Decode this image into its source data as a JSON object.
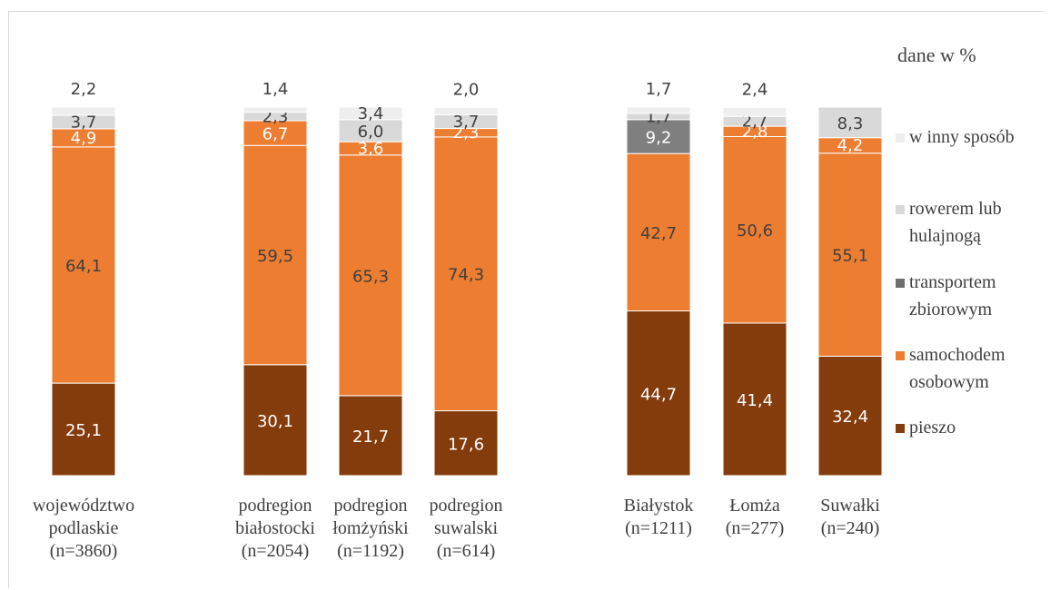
{
  "unit_label": "dane w %",
  "chart_data": {
    "type": "bar",
    "stacked": true,
    "categories": [
      [
        "województwo",
        "podlaskie",
        "(n=3860)"
      ],
      [
        "podregion",
        "białostocki",
        "(n=2054)"
      ],
      [
        "podregion",
        "łomżyński",
        "(n=1192)"
      ],
      [
        "podregion",
        "suwalski",
        "(n=614)"
      ],
      [
        "Białystok",
        "(n=1211)"
      ],
      [
        "Łomża",
        "(n=277)"
      ],
      [
        "Suwałki",
        "(n=240)"
      ]
    ],
    "series": [
      {
        "name": "pieszo",
        "color": "#843c0c",
        "labelColor": "#ffffff",
        "values": [
          25.1,
          30.1,
          21.7,
          17.6,
          44.7,
          41.4,
          32.4
        ],
        "labels": [
          "25,1",
          "30,1",
          "21,7",
          "17,6",
          "44,7",
          "41,4",
          "32,4"
        ]
      },
      {
        "name": "samochodem osobowym",
        "color": "#ed7d31",
        "labelColor": "#404040",
        "values": [
          64.1,
          59.5,
          65.3,
          74.3,
          42.7,
          50.6,
          55.1
        ],
        "labels": [
          "64,1",
          "59,5",
          "65,3",
          "74,3",
          "42,7",
          "50,6",
          "55,1"
        ]
      },
      {
        "name": "transportem zbiorowym",
        "color": "#ed7d31",
        "labelColor": "#ffffff",
        "values": [
          4.9,
          6.7,
          3.6,
          2.3,
          0,
          2.8,
          4.2
        ],
        "labels": [
          "4,9",
          "6,7",
          "3,6",
          "2,3",
          "",
          "2,8",
          "4,2"
        ]
      },
      {
        "name": "transportem zbiorowym (ciemny)",
        "color": "#7f7f7f",
        "labelColor": "#ffffff",
        "values": [
          0,
          0,
          0,
          0,
          9.2,
          0,
          0
        ],
        "labels": [
          "",
          "",
          "",
          "",
          "9,2",
          "",
          ""
        ]
      },
      {
        "name": "rowerem lub hulajnogą",
        "color": "#d9d9d9",
        "labelColor": "#404040",
        "values": [
          3.7,
          2.3,
          6.0,
          3.7,
          1.7,
          2.7,
          8.3
        ],
        "labels": [
          "3,7",
          "2,3",
          "6,0",
          "3,7",
          "1,7",
          "2,7",
          "8,3"
        ]
      },
      {
        "name": "w inny sposób",
        "color": "#eeeeee",
        "labelColor": "#404040",
        "values": [
          2.2,
          1.4,
          3.4,
          2.0,
          1.7,
          2.4,
          0
        ],
        "labels": [
          "2,2",
          "1,4",
          "3,4",
          "2,0",
          "1,7",
          "2,4",
          ""
        ]
      }
    ],
    "legend": {
      "placement": "right",
      "entries": [
        {
          "label": [
            "w inny sposób"
          ],
          "color": "#eeeeee"
        },
        {
          "label": [
            "rowerem lub",
            "hulajnogą"
          ],
          "color": "#d9d9d9"
        },
        {
          "label": [
            "transportem",
            "zbiorowym"
          ],
          "color": "#6f6f6f"
        },
        {
          "label": [
            "samochodem",
            "osobowym"
          ],
          "color": "#ed7d31"
        },
        {
          "label": [
            "pieszo"
          ],
          "color": "#843c0c"
        }
      ]
    },
    "ylim": [
      0,
      100
    ],
    "grid": false
  }
}
